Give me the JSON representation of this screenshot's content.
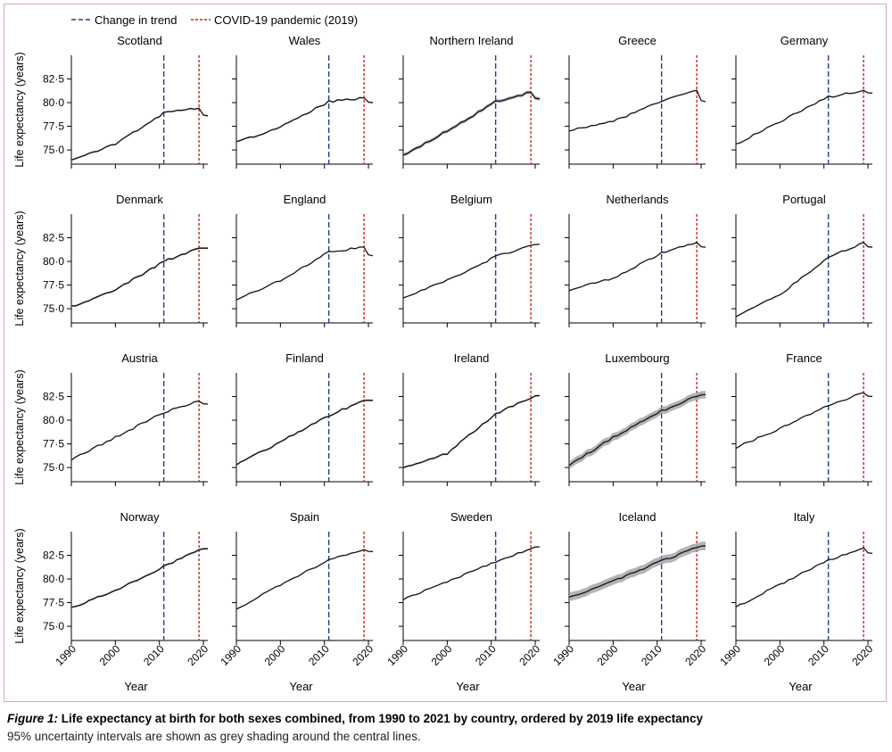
{
  "legend": {
    "trend_label": "Change in trend",
    "covid_label": "COVID-19 pandemic (2019)"
  },
  "caption": {
    "label": "Figure 1:",
    "title": "Life expectancy at birth for both sexes combined, from 1990 to 2021 by country, ordered by 2019 life expectancy",
    "note": "95% uncertainty intervals are shown as grey shading around the central lines."
  },
  "chart_data": {
    "type": "line",
    "layout": "small-multiples 4x5",
    "ylabel": "Life expectancy (years)",
    "xlabel": "Year",
    "xlim": [
      1990,
      2021
    ],
    "ylim": [
      73.5,
      85
    ],
    "xticks": [
      1990,
      2000,
      2010,
      2020
    ],
    "yticks": [
      75.0,
      77.5,
      80.0,
      82.5
    ],
    "ytick_labels": [
      "75·0",
      "77·5",
      "80·0",
      "82·5"
    ],
    "trend_change_year": 2011,
    "covid_year": 2019,
    "colors": {
      "line": "#111111",
      "band": "#9a9a9a",
      "trend": "#1f3f8f",
      "covid": "#c62828"
    },
    "countries": [
      {
        "name": "Scotland",
        "start": 74.0,
        "v2000": 75.6,
        "v2011": 78.9,
        "v2019": 79.4,
        "end": 78.6,
        "band": 0.08
      },
      {
        "name": "Wales",
        "start": 75.8,
        "v2000": 77.4,
        "v2011": 80.1,
        "v2019": 80.5,
        "end": 80.0,
        "band": 0.08
      },
      {
        "name": "Northern Ireland",
        "start": 74.4,
        "v2000": 77.0,
        "v2011": 80.1,
        "v2019": 81.1,
        "end": 80.4,
        "band": 0.18
      },
      {
        "name": "Greece",
        "start": 77.1,
        "v2000": 78.0,
        "v2011": 80.2,
        "v2019": 81.3,
        "end": 80.1,
        "band": 0.05
      },
      {
        "name": "Germany",
        "start": 75.6,
        "v2000": 78.0,
        "v2011": 80.6,
        "v2019": 81.3,
        "end": 81.0,
        "band": 0.03
      },
      {
        "name": "Denmark",
        "start": 75.2,
        "v2000": 77.0,
        "v2011": 80.0,
        "v2019": 81.4,
        "end": 81.4,
        "band": 0.1
      },
      {
        "name": "England",
        "start": 76.0,
        "v2000": 78.0,
        "v2011": 81.0,
        "v2019": 81.5,
        "end": 80.6,
        "band": 0.03
      },
      {
        "name": "Belgium",
        "start": 76.2,
        "v2000": 78.0,
        "v2011": 80.5,
        "v2019": 81.7,
        "end": 81.8,
        "band": 0.05
      },
      {
        "name": "Netherlands",
        "start": 77.0,
        "v2000": 78.2,
        "v2011": 80.9,
        "v2019": 82.0,
        "end": 81.5,
        "band": 0.04
      },
      {
        "name": "Portugal",
        "start": 74.2,
        "v2000": 76.5,
        "v2011": 80.4,
        "v2019": 82.0,
        "end": 81.5,
        "band": 0.06
      },
      {
        "name": "Austria",
        "start": 75.8,
        "v2000": 78.2,
        "v2011": 80.8,
        "v2019": 82.0,
        "end": 81.7,
        "band": 0.05
      },
      {
        "name": "Finland",
        "start": 75.3,
        "v2000": 77.7,
        "v2011": 80.5,
        "v2019": 82.1,
        "end": 82.1,
        "band": 0.1
      },
      {
        "name": "Ireland",
        "start": 75.0,
        "v2000": 76.5,
        "v2011": 80.7,
        "v2019": 82.3,
        "end": 82.6,
        "band": 0.1
      },
      {
        "name": "Luxembourg",
        "start": 75.2,
        "v2000": 78.2,
        "v2011": 81.0,
        "v2019": 82.5,
        "end": 82.7,
        "band": 0.4
      },
      {
        "name": "France",
        "start": 77.1,
        "v2000": 79.1,
        "v2011": 81.6,
        "v2019": 82.9,
        "end": 82.5,
        "band": 0.03
      },
      {
        "name": "Norway",
        "start": 76.9,
        "v2000": 78.8,
        "v2011": 81.3,
        "v2019": 83.1,
        "end": 83.2,
        "band": 0.1
      },
      {
        "name": "Spain",
        "start": 76.8,
        "v2000": 79.4,
        "v2011": 82.0,
        "v2019": 83.1,
        "end": 82.9,
        "band": 0.04
      },
      {
        "name": "Sweden",
        "start": 77.9,
        "v2000": 79.7,
        "v2011": 81.8,
        "v2019": 83.2,
        "end": 83.4,
        "band": 0.05
      },
      {
        "name": "Iceland",
        "start": 78.0,
        "v2000": 79.8,
        "v2011": 81.9,
        "v2019": 83.3,
        "end": 83.5,
        "band": 0.45
      },
      {
        "name": "Italy",
        "start": 77.0,
        "v2000": 79.4,
        "v2011": 82.0,
        "v2019": 83.3,
        "end": 82.7,
        "band": 0.03
      }
    ]
  }
}
